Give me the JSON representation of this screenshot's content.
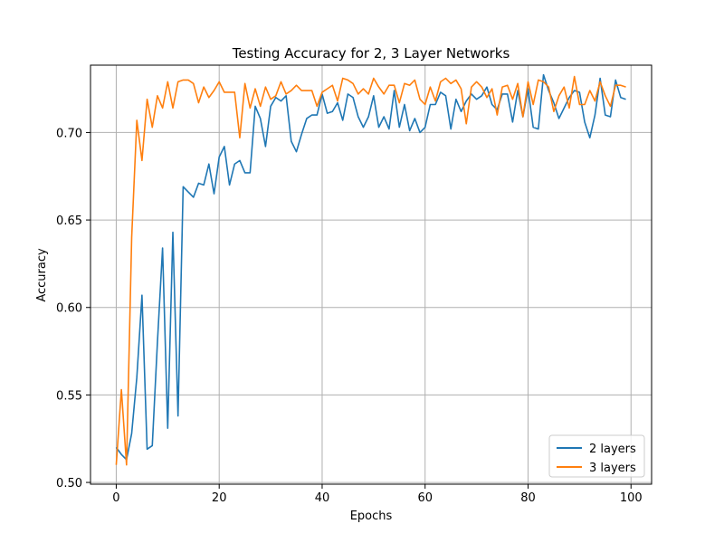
{
  "chart_data": {
    "type": "line",
    "title": "Testing Accuracy for 2, 3 Layer Networks",
    "xlabel": "Epochs",
    "ylabel": "Accuracy",
    "xlim": [
      -5,
      104
    ],
    "ylim": [
      0.499,
      0.7385
    ],
    "xticks": [
      0,
      20,
      40,
      60,
      80,
      100
    ],
    "yticks": [
      0.5,
      0.55,
      0.6,
      0.65,
      0.7
    ],
    "ytick_labels": [
      "0.50",
      "0.55",
      "0.60",
      "0.65",
      "0.70"
    ],
    "grid": true,
    "legend_position": "bottom-right",
    "series": [
      {
        "name": "2 layers",
        "color": "#1f77b4",
        "values": [
          0.52,
          0.516,
          0.513,
          0.528,
          0.56,
          0.607,
          0.519,
          0.521,
          0.58,
          0.634,
          0.531,
          0.643,
          0.538,
          0.669,
          0.666,
          0.663,
          0.671,
          0.67,
          0.682,
          0.665,
          0.686,
          0.692,
          0.67,
          0.682,
          0.684,
          0.677,
          0.677,
          0.715,
          0.708,
          0.692,
          0.715,
          0.72,
          0.718,
          0.721,
          0.695,
          0.689,
          0.699,
          0.708,
          0.71,
          0.71,
          0.722,
          0.711,
          0.712,
          0.717,
          0.707,
          0.722,
          0.72,
          0.709,
          0.703,
          0.709,
          0.721,
          0.703,
          0.709,
          0.702,
          0.724,
          0.703,
          0.716,
          0.701,
          0.708,
          0.7,
          0.703,
          0.716,
          0.716,
          0.723,
          0.721,
          0.702,
          0.719,
          0.712,
          0.718,
          0.722,
          0.719,
          0.721,
          0.726,
          0.716,
          0.713,
          0.722,
          0.722,
          0.706,
          0.724,
          0.709,
          0.725,
          0.703,
          0.702,
          0.733,
          0.724,
          0.717,
          0.708,
          0.714,
          0.72,
          0.724,
          0.723,
          0.706,
          0.697,
          0.71,
          0.731,
          0.71,
          0.709,
          0.73,
          0.72,
          0.719
        ]
      },
      {
        "name": "3 layers",
        "color": "#ff7f0e",
        "values": [
          0.51,
          0.553,
          0.51,
          0.64,
          0.707,
          0.684,
          0.719,
          0.703,
          0.721,
          0.714,
          0.729,
          0.714,
          0.729,
          0.73,
          0.73,
          0.728,
          0.717,
          0.726,
          0.72,
          0.724,
          0.729,
          0.723,
          0.723,
          0.723,
          0.697,
          0.728,
          0.714,
          0.725,
          0.715,
          0.726,
          0.719,
          0.721,
          0.729,
          0.722,
          0.724,
          0.727,
          0.724,
          0.724,
          0.724,
          0.715,
          0.723,
          0.725,
          0.727,
          0.718,
          0.731,
          0.73,
          0.728,
          0.722,
          0.725,
          0.722,
          0.731,
          0.726,
          0.722,
          0.727,
          0.727,
          0.717,
          0.728,
          0.727,
          0.73,
          0.719,
          0.716,
          0.726,
          0.718,
          0.729,
          0.731,
          0.728,
          0.73,
          0.725,
          0.705,
          0.726,
          0.729,
          0.726,
          0.72,
          0.725,
          0.71,
          0.726,
          0.727,
          0.719,
          0.728,
          0.709,
          0.729,
          0.716,
          0.73,
          0.729,
          0.726,
          0.712,
          0.721,
          0.726,
          0.714,
          0.732,
          0.716,
          0.716,
          0.724,
          0.718,
          0.729,
          0.721,
          0.715,
          0.727,
          0.727,
          0.726
        ]
      }
    ]
  }
}
